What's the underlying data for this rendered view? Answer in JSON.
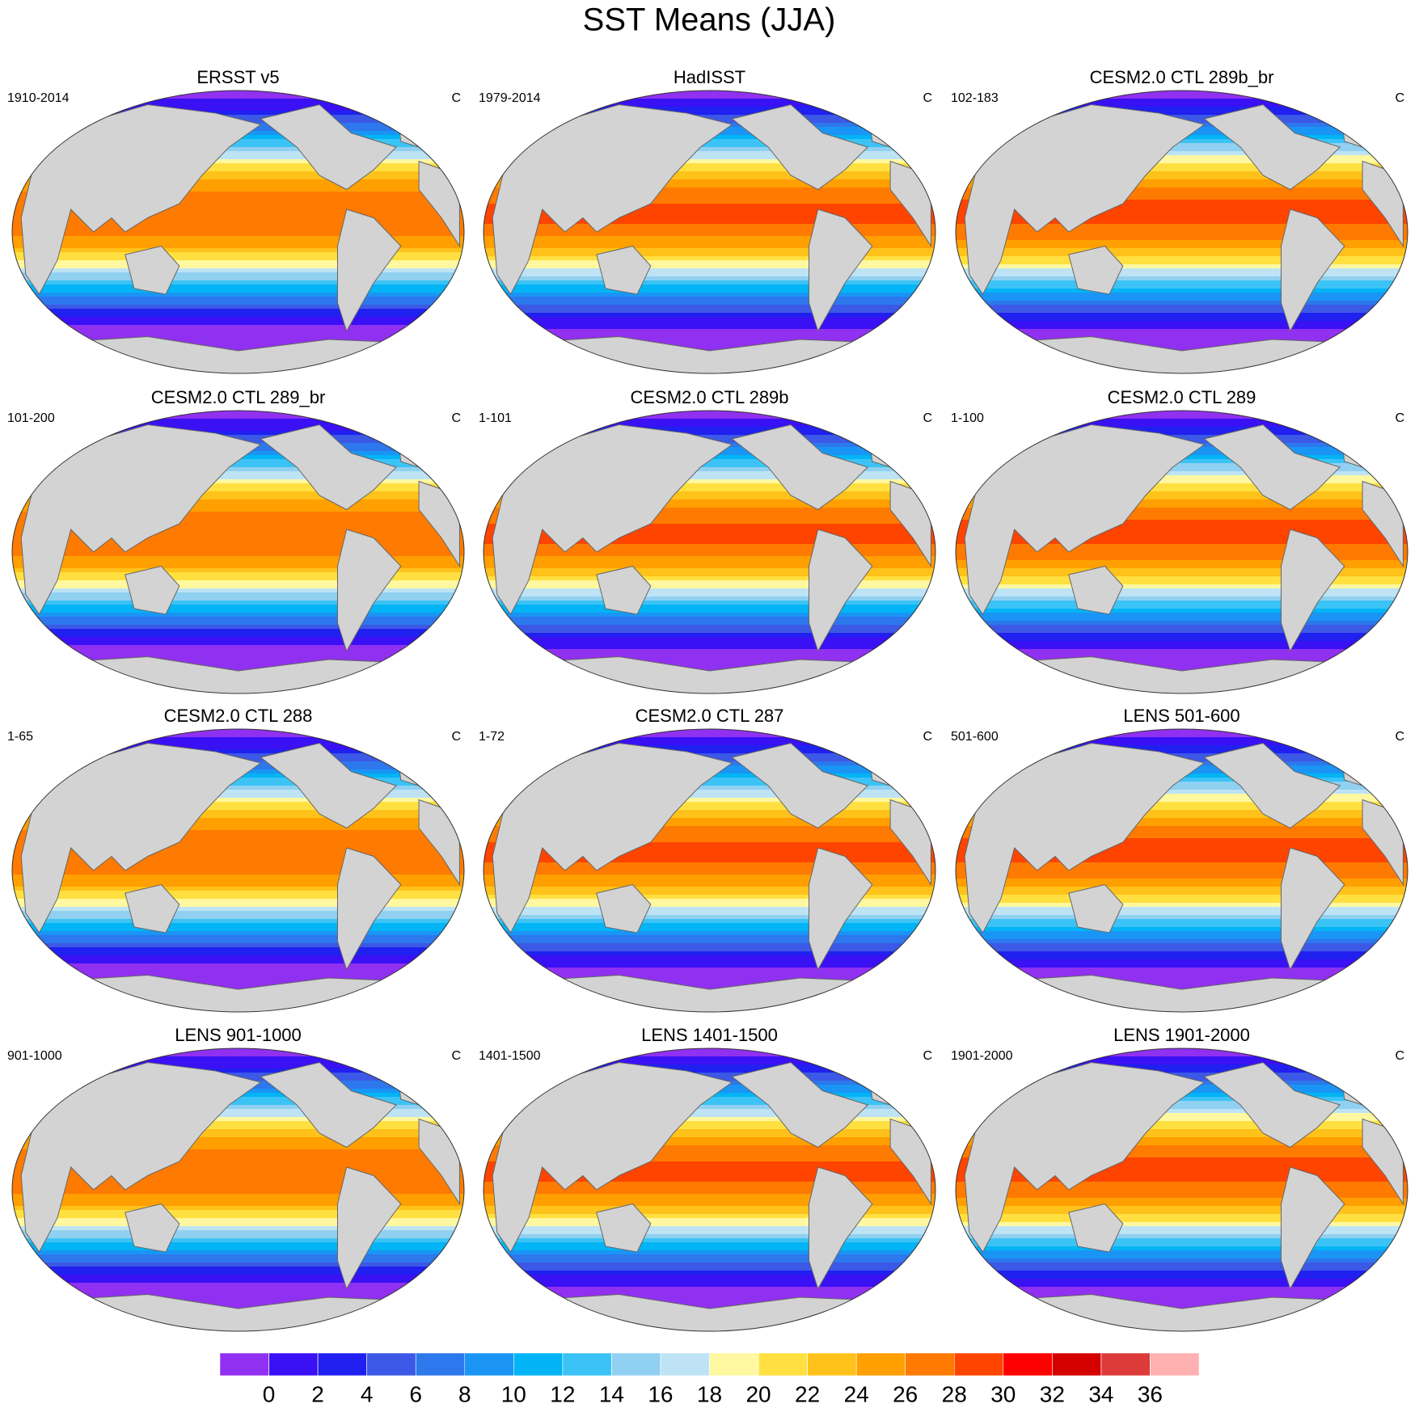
{
  "title": "SST Means (JJA)",
  "panels": [
    {
      "title": "ERSST v5",
      "years": "1910-2014",
      "units": "C"
    },
    {
      "title": "HadISST",
      "years": "1979-2014",
      "units": "C"
    },
    {
      "title": "CESM2.0 CTL 289b_br",
      "years": "102-183",
      "units": "C"
    },
    {
      "title": "CESM2.0 CTL 289_br",
      "years": "101-200",
      "units": "C"
    },
    {
      "title": "CESM2.0 CTL 289b",
      "years": "1-101",
      "units": "C"
    },
    {
      "title": "CESM2.0 CTL 289",
      "years": "1-100",
      "units": "C"
    },
    {
      "title": "CESM2.0 CTL 288",
      "years": "1-65",
      "units": "C"
    },
    {
      "title": "CESM2.0 CTL 287",
      "years": "1-72",
      "units": "C"
    },
    {
      "title": "LENS 501-600",
      "years": "501-600",
      "units": "C"
    },
    {
      "title": "LENS 901-1000",
      "years": "901-1000",
      "units": "C"
    },
    {
      "title": "LENS 1401-1500",
      "years": "1401-1500",
      "units": "C"
    },
    {
      "title": "LENS 1901-2000",
      "years": "1901-2000",
      "units": "C"
    }
  ],
  "colorbar": {
    "colors": [
      "#9030f0",
      "#3a10f5",
      "#2020f0",
      "#3c58e6",
      "#2c78ec",
      "#1a95f5",
      "#00b4f5",
      "#3cc3f5",
      "#90d0f0",
      "#bde3f5",
      "#fff8a0",
      "#ffe040",
      "#ffc21a",
      "#ff9f00",
      "#ff7a00",
      "#ff4400",
      "#ff0000",
      "#d40000",
      "#dd3a3a",
      "#ffb0b0"
    ],
    "levels": [
      0,
      2,
      4,
      6,
      8,
      10,
      12,
      14,
      16,
      18,
      20,
      22,
      24,
      26,
      28,
      30,
      32,
      34,
      36
    ]
  }
}
